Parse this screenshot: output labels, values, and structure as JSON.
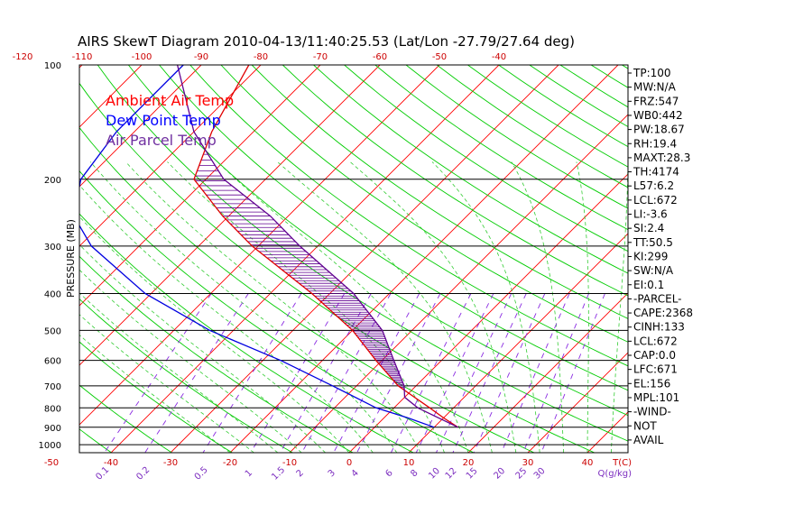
{
  "chart_data": {
    "type": "line",
    "title": "AIRS SkewT Diagram 2010-04-13/11:40:25.53 (Lat/Lon -27.79/27.64 deg)",
    "ylabel": "PRESSURE (MB)",
    "xlabel": "T(C)",
    "mixing_ratio_label": "Q(g/kg)",
    "pressure_ticks": [
      "100",
      "200",
      "300",
      "400",
      "500",
      "600",
      "700",
      "800",
      "900",
      "1000"
    ],
    "pressure_values": [
      100,
      200,
      300,
      400,
      500,
      600,
      700,
      800,
      900,
      1000
    ],
    "bottom_temp_ticks": [
      "-50",
      "-40",
      "-30",
      "-20",
      "-10",
      "0",
      "10",
      "20",
      "30",
      "40"
    ],
    "bottom_temp_values": [
      -50,
      -40,
      -30,
      -20,
      -10,
      0,
      10,
      20,
      30,
      40
    ],
    "top_temp_ticks": [
      "-120",
      "-110",
      "-100",
      "-90",
      "-80",
      "-70",
      "-60",
      "-50",
      "-40"
    ],
    "top_temp_values": [
      -120,
      -110,
      -100,
      -90,
      -80,
      -70,
      -60,
      -50,
      -40
    ],
    "mixing_ratio_ticks": [
      "0.1",
      "0.2",
      "0.5",
      "1",
      "1.5",
      "2",
      "3",
      "4",
      "6",
      "8",
      "10",
      "12",
      "15",
      "20",
      "25",
      "30"
    ],
    "legend": [
      {
        "label": "Ambient Air Temp",
        "color": "#ff0000"
      },
      {
        "label": "Dew Point Temp",
        "color": "#0000ff"
      },
      {
        "label": "Air Parcel Temp",
        "color": "#7030a0"
      }
    ],
    "colors": {
      "ambient": "#e00000",
      "dewpoint": "#0000e0",
      "parcel": "#600090",
      "isotherm": "#ff0000",
      "dry_adiabat": "#00cc00",
      "moist_adiabat": "#33cc33",
      "mixing_ratio": "#8a2be2",
      "isobar": "#000000"
    },
    "series": [
      {
        "name": "Ambient Air Temp",
        "points": [
          [
            100,
            -82
          ],
          [
            150,
            -77
          ],
          [
            200,
            -72
          ],
          [
            250,
            -61
          ],
          [
            300,
            -51
          ],
          [
            400,
            -33
          ],
          [
            500,
            -20
          ],
          [
            600,
            -11
          ],
          [
            700,
            -3
          ],
          [
            800,
            6
          ],
          [
            850,
            10
          ],
          [
            900,
            14
          ]
        ]
      },
      {
        "name": "Dew Point Temp",
        "points": [
          [
            100,
            -93
          ],
          [
            150,
            -93
          ],
          [
            200,
            -91
          ],
          [
            250,
            -86
          ],
          [
            300,
            -78
          ],
          [
            400,
            -61
          ],
          [
            500,
            -44
          ],
          [
            600,
            -27
          ],
          [
            700,
            -14
          ],
          [
            800,
            -3
          ],
          [
            850,
            4
          ],
          [
            900,
            10
          ]
        ]
      },
      {
        "name": "Air Parcel Temp",
        "points": [
          [
            100,
            -94
          ],
          [
            150,
            -80
          ],
          [
            200,
            -67
          ],
          [
            250,
            -53
          ],
          [
            300,
            -43
          ],
          [
            400,
            -26
          ],
          [
            500,
            -15
          ],
          [
            600,
            -8
          ],
          [
            700,
            -2
          ],
          [
            750,
            0
          ],
          [
            800,
            4
          ],
          [
            900,
            14
          ]
        ]
      }
    ]
  },
  "stats": [
    "TP:100",
    "MW:N/A",
    "FRZ:547",
    "WB0:442",
    "PW:18.67",
    "RH:19.4",
    "MAXT:28.3",
    "TH:4174",
    "L57:6.2",
    "LCL:672",
    "LI:-3.6",
    "SI:2.4",
    "TT:50.5",
    "KI:299",
    "SW:N/A",
    "EI:0.1",
    "-PARCEL-",
    "CAPE:2368",
    "CINH:133",
    "LCL:672",
    "CAP:0.0",
    "LFC:671",
    "EL:156",
    "MPL:101",
    "-WIND-",
    " NOT",
    "AVAIL"
  ]
}
